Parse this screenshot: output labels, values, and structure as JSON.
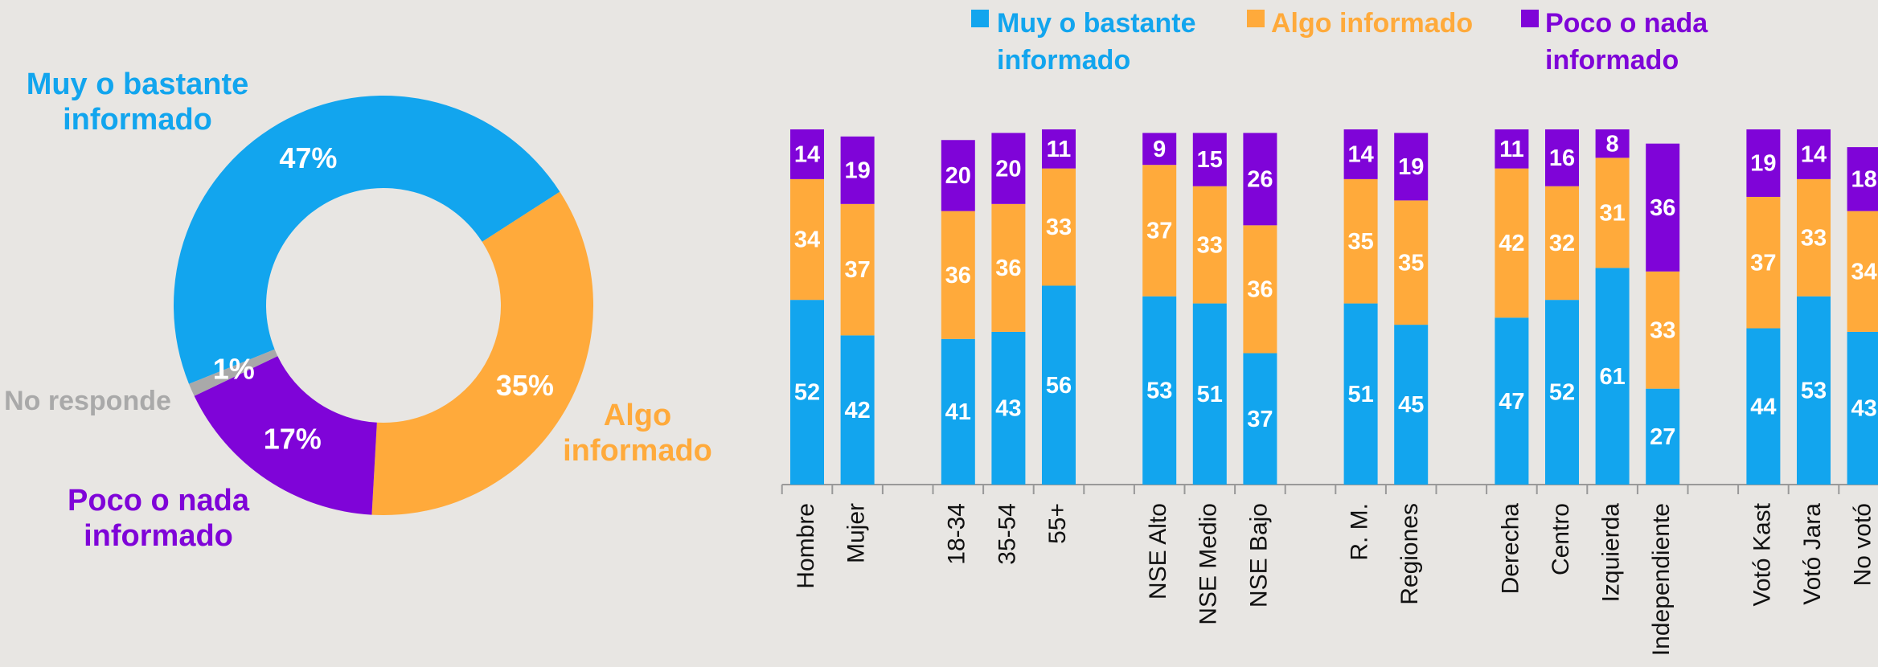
{
  "chart_data": [
    {
      "type": "pie",
      "categories": [
        "Muy o bastante informado",
        "Algo informado",
        "Poco o nada informado",
        "No responde"
      ],
      "values": [
        47,
        35,
        17,
        1
      ],
      "value_labels": [
        "47%",
        "35%",
        "17%",
        "1%"
      ],
      "colors": [
        "#12a5ee",
        "#ffaa3b",
        "#7f04d8",
        "#a9a9a9"
      ]
    },
    {
      "type": "bar",
      "stacked": true,
      "categories": [
        "Hombre",
        "Mujer",
        null,
        "18-34",
        "35-54",
        "55+",
        null,
        "NSE Alto",
        "NSE Medio",
        "NSE Bajo",
        null,
        "R. M.",
        "Regiones",
        null,
        "Derecha",
        "Centro",
        "Izquierda",
        "Independiente",
        null,
        "Votó Kast",
        "Votó Jara",
        "No votó"
      ],
      "ylim": [
        0,
        100
      ],
      "series": [
        {
          "name": "Muy o bastante informado",
          "color": "#12a5ee",
          "values": [
            52,
            42,
            null,
            41,
            43,
            56,
            null,
            53,
            51,
            37,
            null,
            51,
            45,
            null,
            47,
            52,
            61,
            27,
            null,
            44,
            53,
            43
          ]
        },
        {
          "name": "Algo informado",
          "color": "#ffaa3b",
          "values": [
            34,
            37,
            null,
            36,
            36,
            33,
            null,
            37,
            33,
            36,
            null,
            35,
            35,
            null,
            42,
            32,
            31,
            33,
            null,
            37,
            33,
            34
          ]
        },
        {
          "name": "Poco o nada informado",
          "color": "#7f04d8",
          "values": [
            14,
            19,
            null,
            20,
            20,
            11,
            null,
            9,
            15,
            26,
            null,
            14,
            19,
            null,
            11,
            16,
            8,
            36,
            null,
            19,
            14,
            18
          ]
        }
      ]
    }
  ]
}
